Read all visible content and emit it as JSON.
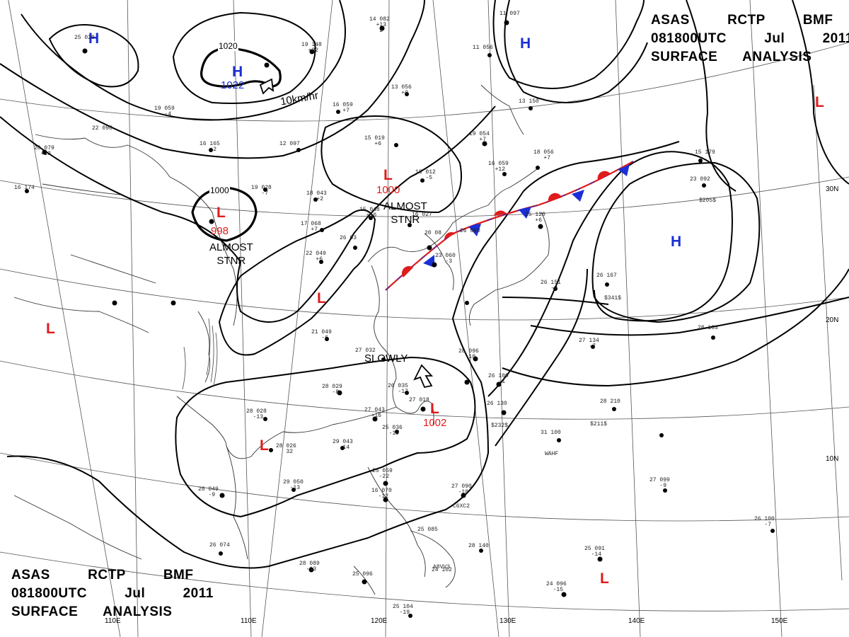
{
  "title": {
    "line1": "ASAS   RCTP   BMF",
    "line2": "081800UTC   Jul   2011",
    "line3": "SURFACE  ANALYSIS"
  },
  "pressure_systems": [
    {
      "id": "h-nw",
      "type": "H",
      "pressure": ""
    },
    {
      "id": "h-center",
      "type": "H",
      "pressure": "1022"
    },
    {
      "id": "h-ne",
      "type": "H",
      "pressure": ""
    },
    {
      "id": "h-east",
      "type": "H",
      "pressure": ""
    },
    {
      "id": "l-yellow-sea",
      "type": "L",
      "pressure": "1000"
    },
    {
      "id": "l-west",
      "type": "L",
      "pressure": "998"
    },
    {
      "id": "l-china",
      "type": "L",
      "pressure": ""
    },
    {
      "id": "l-far-west",
      "type": "L",
      "pressure": ""
    },
    {
      "id": "l-taiwan",
      "type": "L",
      "pressure": "1002"
    },
    {
      "id": "l-indochina",
      "type": "L",
      "pressure": ""
    },
    {
      "id": "l-ne-edge",
      "type": "L",
      "pressure": ""
    },
    {
      "id": "l-se",
      "type": "L",
      "pressure": ""
    }
  ],
  "isobar_labels": {
    "center_high": "1020",
    "west_low": "1000"
  },
  "annotations": {
    "speed": "10km/hr",
    "almost_stnr_1": "ALMOST\nSTNR",
    "almost_stnr_2": "ALMOST\nSTNR",
    "slowly": "SLOWLY"
  },
  "grid_labels": {
    "longitudes": [
      "110E",
      "120E",
      "130E",
      "140E",
      "150E"
    ],
    "latitudes": [
      "30N",
      "20N",
      "10N"
    ]
  },
  "station_reports": [
    "14 082\n  +13\n   2",
    "13 056\n   +9",
    "15 019\n   +6",
    "18 012\n   -5",
    "19 054\n   +7",
    "16 059\n  +12",
    "22 098",
    "19 059\n   -4",
    "16 165\n   +2",
    "12 097",
    "16 059\n   +7",
    "19 028\n   -7",
    "18 043\n   +2",
    "15 048\n  +10",
    "16 027",
    "17 068\n   +7",
    "26 03",
    "22 049\n   +6",
    "21 049\n   -6",
    "27 032",
    "20 08",
    "23 060\n   -3",
    "26 035\n   -17",
    "27 018",
    "27 043\n  +16",
    "25 036\n  -19",
    "28 029\n   -8",
    "28 028\n  -13",
    "28 026\n   32",
    "29 043\n  -14",
    "29 050\n  -13",
    "28 049\n   -9",
    "26 074",
    "28 089\n  -13",
    "25 096",
    "25 104\n  -19",
    "25 059\n  -22",
    "16 070\n  -12",
    "27 090\n  -10",
    "28 140",
    "24 102",
    "25 085",
    "26 109\n   -1",
    "28 096\n  -10",
    "26 130",
    "27 134\n   -7",
    "28 210",
    "31 100",
    "27 099\n   -9",
    "26 100\n   -7",
    "25 091\n  -14",
    "24 096\n  -15",
    "28 133",
    "26 167",
    "26 151\n   -2",
    "25 120\n   +6",
    "18 056\n   +7",
    "11 056",
    "11 097",
    "13 150",
    "23 092",
    "15 179",
    "20 079\n  +13",
    "25 020",
    "16 174",
    "19 148\n  +22",
    "26 060"
  ],
  "station_codes": [
    "WAHF",
    "A8VV3",
    "C6XC2",
    "$232$",
    "$211$",
    "$341$",
    "$205$"
  ],
  "fronts": [
    {
      "type": "stationary",
      "description": "front from East China Sea toward northeast"
    }
  ],
  "colors": {
    "isobar": "#000000",
    "high": "#1a2fd6",
    "low": "#e01b1b",
    "front_warm": "#e01b1b",
    "front_cold": "#1a2fd6",
    "grid": "#555555",
    "coast": "#333333"
  }
}
